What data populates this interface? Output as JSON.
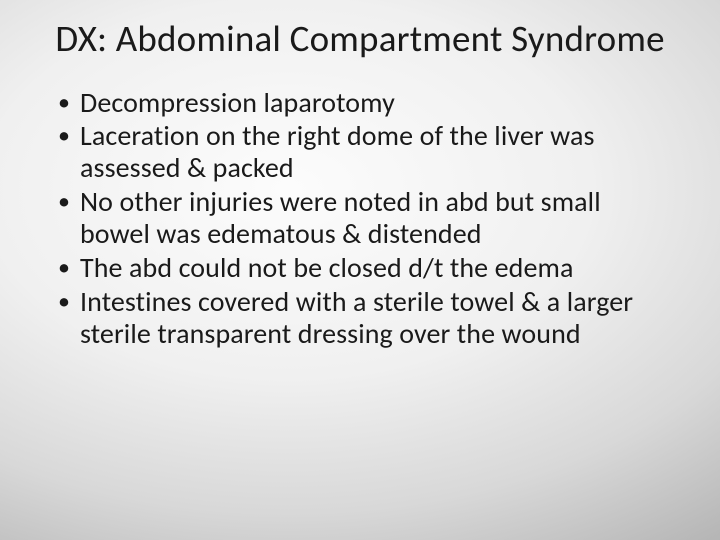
{
  "slide": {
    "title": "DX:  Abdominal Compartment Syndrome",
    "bullets": [
      "Decompression laparotomy",
      "Laceration on the right dome of the liver was assessed & packed",
      "No other injuries were noted in abd but small bowel was edematous & distended",
      "The abd could not be closed d/t the edema",
      "Intestines covered with a sterile towel & a larger sterile transparent dressing over the wound"
    ]
  },
  "style": {
    "background": "radial-gradient",
    "bg_center_color": "#fcfcfc",
    "bg_edge_color": "#9c9c9c",
    "text_color": "#1a1a1a",
    "font_family": "Calibri",
    "title_fontsize": 37,
    "title_fontweight": 400,
    "title_align": "center",
    "bullet_fontsize": 28,
    "bullet_marker": "•",
    "slide_width": 720,
    "slide_height": 540
  }
}
